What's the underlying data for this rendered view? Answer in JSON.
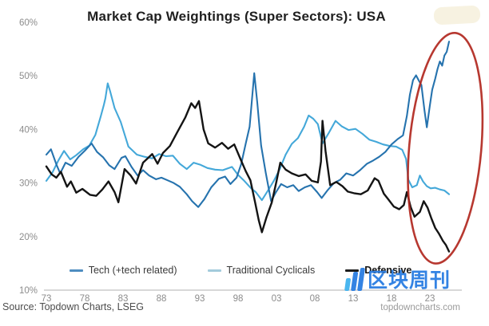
{
  "title": "Market Cap Weightings (Super Sectors): USA",
  "source": "Source: Topdown Charts, LSEG",
  "website": "topdowncharts.com",
  "watermark": {
    "text": "区块周刊",
    "color": "#2a7de2",
    "bar_colors": [
      "#41b3ef",
      "#2a7de2",
      "#2a7de2"
    ]
  },
  "colors": {
    "tech_line": "#2673ae",
    "cyclicals_line": "#44a8d9",
    "defensive_line": "#141414",
    "ellipse": "#b1271e",
    "axis_text": "#8c8c8c",
    "baseline": "#cccccc",
    "legend_swatches": [
      "#4e8dc0",
      "#a3cbdc",
      "#1d1d1d"
    ]
  },
  "chart_data": {
    "type": "line",
    "title": "Market Cap Weightings (Super Sectors): USA",
    "xlabel": "",
    "ylabel": "",
    "grid": false,
    "legend_position": "bottom",
    "ylim": [
      10,
      60
    ],
    "xlim": [
      1971.8,
      2026.5
    ],
    "y_ticks": {
      "labels": [
        "60%",
        "50%",
        "40%",
        "30%",
        "20%",
        "10%"
      ],
      "values": [
        60,
        50,
        40,
        30,
        20,
        10
      ]
    },
    "x_ticks": {
      "labels": [
        "73",
        "78",
        "83",
        "88",
        "93",
        "98",
        "03",
        "08",
        "13",
        "18",
        "23"
      ],
      "years": [
        1973,
        1978,
        1983,
        1988,
        1993,
        1998,
        2003,
        2008,
        2013,
        2018,
        2023
      ]
    },
    "highlight_ellipse": {
      "note": "red ellipse circling post-2020 divergence: Tech surging, Defensive collapsing",
      "center_year": 2025.0,
      "center_value": 36.5,
      "radius_years": 4.7,
      "radius_value": 21.6,
      "tilt_deg": 5
    },
    "series": [
      {
        "name": "Tech (+tech related)",
        "key": "tech",
        "color_key": "tech_line",
        "bold_legend": false,
        "points": [
          [
            1973.0,
            35.3
          ],
          [
            1973.6,
            36.3
          ],
          [
            1974.3,
            33.5
          ],
          [
            1974.8,
            31.8
          ],
          [
            1975.5,
            33.8
          ],
          [
            1976.3,
            33.2
          ],
          [
            1977.2,
            34.9
          ],
          [
            1978.0,
            36.0
          ],
          [
            1978.9,
            37.4
          ],
          [
            1979.6,
            35.8
          ],
          [
            1980.4,
            34.8
          ],
          [
            1981.2,
            33.3
          ],
          [
            1981.9,
            32.6
          ],
          [
            1982.8,
            34.7
          ],
          [
            1983.3,
            35.0
          ],
          [
            1984.1,
            33.0
          ],
          [
            1984.9,
            31.4
          ],
          [
            1985.6,
            32.4
          ],
          [
            1986.4,
            31.4
          ],
          [
            1987.3,
            30.7
          ],
          [
            1988.0,
            31.0
          ],
          [
            1988.8,
            30.5
          ],
          [
            1989.6,
            30.0
          ],
          [
            1990.4,
            29.3
          ],
          [
            1991.3,
            27.9
          ],
          [
            1992.0,
            26.6
          ],
          [
            1992.8,
            25.5
          ],
          [
            1993.6,
            27.0
          ],
          [
            1994.5,
            29.2
          ],
          [
            1995.5,
            30.8
          ],
          [
            1996.3,
            31.2
          ],
          [
            1997.0,
            29.8
          ],
          [
            1997.8,
            31.0
          ],
          [
            1998.4,
            33.5
          ],
          [
            1999.0,
            37.4
          ],
          [
            1999.5,
            40.5
          ],
          [
            1999.8,
            45.5
          ],
          [
            2000.1,
            50.5
          ],
          [
            2000.5,
            45.0
          ],
          [
            2001.0,
            37.0
          ],
          [
            2001.6,
            31.9
          ],
          [
            2002.3,
            26.6
          ],
          [
            2002.9,
            28.2
          ],
          [
            2003.6,
            29.8
          ],
          [
            2004.4,
            29.2
          ],
          [
            2005.2,
            29.6
          ],
          [
            2005.9,
            28.5
          ],
          [
            2006.7,
            29.2
          ],
          [
            2007.5,
            29.6
          ],
          [
            2008.3,
            28.3
          ],
          [
            2008.9,
            27.2
          ],
          [
            2009.7,
            28.7
          ],
          [
            2010.5,
            30.0
          ],
          [
            2011.3,
            30.6
          ],
          [
            2012.1,
            31.8
          ],
          [
            2013.0,
            31.4
          ],
          [
            2013.9,
            32.4
          ],
          [
            2014.8,
            33.6
          ],
          [
            2015.6,
            34.2
          ],
          [
            2016.4,
            34.9
          ],
          [
            2017.2,
            35.8
          ],
          [
            2018.0,
            37.2
          ],
          [
            2018.8,
            38.2
          ],
          [
            2019.5,
            38.9
          ],
          [
            2020.0,
            42.5
          ],
          [
            2020.4,
            46.5
          ],
          [
            2020.8,
            49.2
          ],
          [
            2021.2,
            50.1
          ],
          [
            2021.6,
            49.0
          ],
          [
            2021.9,
            48.3
          ],
          [
            2022.3,
            43.5
          ],
          [
            2022.6,
            40.4
          ],
          [
            2023.0,
            44.5
          ],
          [
            2023.3,
            47.4
          ],
          [
            2023.7,
            49.5
          ],
          [
            2024.0,
            51.3
          ],
          [
            2024.3,
            52.7
          ],
          [
            2024.6,
            51.9
          ],
          [
            2024.9,
            53.8
          ],
          [
            2025.2,
            54.5
          ],
          [
            2025.5,
            56.4
          ]
        ]
      },
      {
        "name": "Traditional Cyclicals",
        "key": "traditional-cyclicals",
        "color_key": "cyclicals_line",
        "bold_legend": false,
        "points": [
          [
            1973.0,
            30.4
          ],
          [
            1973.8,
            32.0
          ],
          [
            1974.6,
            34.3
          ],
          [
            1975.3,
            36.0
          ],
          [
            1976.1,
            34.4
          ],
          [
            1976.9,
            35.2
          ],
          [
            1977.8,
            36.3
          ],
          [
            1978.6,
            37.0
          ],
          [
            1979.4,
            39.0
          ],
          [
            1980.1,
            42.5
          ],
          [
            1980.5,
            44.6
          ],
          [
            1980.7,
            45.8
          ],
          [
            1981.0,
            48.6
          ],
          [
            1981.3,
            47.2
          ],
          [
            1981.9,
            44.0
          ],
          [
            1982.7,
            41.4
          ],
          [
            1983.7,
            36.8
          ],
          [
            1984.8,
            35.3
          ],
          [
            1985.8,
            34.9
          ],
          [
            1986.8,
            34.6
          ],
          [
            1987.7,
            35.4
          ],
          [
            1988.6,
            35.0
          ],
          [
            1989.5,
            35.1
          ],
          [
            1990.4,
            33.6
          ],
          [
            1991.3,
            32.6
          ],
          [
            1992.2,
            33.8
          ],
          [
            1993.1,
            33.4
          ],
          [
            1994.0,
            32.8
          ],
          [
            1995.0,
            32.5
          ],
          [
            1996.0,
            32.4
          ],
          [
            1997.2,
            33.0
          ],
          [
            1998.0,
            31.5
          ],
          [
            1998.8,
            30.4
          ],
          [
            1999.7,
            29.0
          ],
          [
            2000.3,
            28.3
          ],
          [
            2001.1,
            26.8
          ],
          [
            2001.9,
            28.6
          ],
          [
            2002.7,
            30.5
          ],
          [
            2003.4,
            32.5
          ],
          [
            2004.2,
            35.3
          ],
          [
            2005.0,
            37.3
          ],
          [
            2005.8,
            38.4
          ],
          [
            2006.6,
            40.5
          ],
          [
            2007.2,
            42.6
          ],
          [
            2007.8,
            42.0
          ],
          [
            2008.4,
            41.0
          ],
          [
            2009.0,
            37.4
          ],
          [
            2009.8,
            39.3
          ],
          [
            2010.7,
            41.6
          ],
          [
            2011.5,
            40.6
          ],
          [
            2012.4,
            39.9
          ],
          [
            2013.3,
            40.1
          ],
          [
            2014.2,
            39.2
          ],
          [
            2015.1,
            38.1
          ],
          [
            2016.0,
            37.7
          ],
          [
            2016.9,
            37.2
          ],
          [
            2017.8,
            36.9
          ],
          [
            2018.6,
            36.8
          ],
          [
            2019.4,
            36.2
          ],
          [
            2019.9,
            34.5
          ],
          [
            2020.2,
            30.6
          ],
          [
            2020.7,
            29.2
          ],
          [
            2021.3,
            29.6
          ],
          [
            2021.7,
            31.4
          ],
          [
            2022.1,
            30.3
          ],
          [
            2022.6,
            29.4
          ],
          [
            2023.1,
            29.0
          ],
          [
            2023.7,
            29.1
          ],
          [
            2024.3,
            28.8
          ],
          [
            2024.9,
            28.6
          ],
          [
            2025.5,
            27.9
          ]
        ]
      },
      {
        "name": "Defensive",
        "key": "defensive",
        "color_key": "defensive_line",
        "bold_legend": true,
        "points": [
          [
            1973.0,
            33.1
          ],
          [
            1973.7,
            31.6
          ],
          [
            1974.3,
            31.0
          ],
          [
            1974.9,
            32.1
          ],
          [
            1975.7,
            29.3
          ],
          [
            1976.2,
            30.3
          ],
          [
            1976.9,
            28.2
          ],
          [
            1977.7,
            28.9
          ],
          [
            1978.7,
            27.8
          ],
          [
            1979.5,
            27.6
          ],
          [
            1980.3,
            28.8
          ],
          [
            1981.1,
            30.3
          ],
          [
            1981.9,
            28.3
          ],
          [
            1982.4,
            26.4
          ],
          [
            1983.2,
            32.6
          ],
          [
            1984.0,
            31.4
          ],
          [
            1984.7,
            29.9
          ],
          [
            1985.6,
            33.8
          ],
          [
            1986.8,
            35.4
          ],
          [
            1987.5,
            33.6
          ],
          [
            1988.2,
            35.6
          ],
          [
            1989.1,
            36.9
          ],
          [
            1990.0,
            39.3
          ],
          [
            1991.1,
            42.2
          ],
          [
            1991.9,
            44.9
          ],
          [
            1992.4,
            44.0
          ],
          [
            1992.9,
            45.3
          ],
          [
            1993.5,
            40.0
          ],
          [
            1994.1,
            37.4
          ],
          [
            1995.0,
            36.6
          ],
          [
            1995.9,
            37.5
          ],
          [
            1996.7,
            36.4
          ],
          [
            1997.5,
            37.2
          ],
          [
            1998.3,
            34.5
          ],
          [
            1999.0,
            32.2
          ],
          [
            1999.6,
            30.5
          ],
          [
            2000.2,
            26.5
          ],
          [
            2000.7,
            23.0
          ],
          [
            2001.1,
            20.8
          ],
          [
            2001.7,
            23.6
          ],
          [
            2002.4,
            26.4
          ],
          [
            2003.0,
            30.3
          ],
          [
            2003.5,
            33.8
          ],
          [
            2004.2,
            32.5
          ],
          [
            2005.0,
            31.8
          ],
          [
            2005.9,
            31.3
          ],
          [
            2006.8,
            31.6
          ],
          [
            2007.6,
            30.4
          ],
          [
            2008.4,
            30.1
          ],
          [
            2008.8,
            34.0
          ],
          [
            2009.0,
            41.6
          ],
          [
            2009.4,
            36.0
          ],
          [
            2010.0,
            29.6
          ],
          [
            2010.8,
            30.2
          ],
          [
            2011.6,
            29.4
          ],
          [
            2012.3,
            28.4
          ],
          [
            2013.1,
            28.1
          ],
          [
            2014.0,
            27.9
          ],
          [
            2014.9,
            28.6
          ],
          [
            2015.8,
            30.9
          ],
          [
            2016.3,
            30.4
          ],
          [
            2017.0,
            28.0
          ],
          [
            2017.6,
            26.9
          ],
          [
            2018.3,
            25.6
          ],
          [
            2019.0,
            25.1
          ],
          [
            2019.6,
            25.9
          ],
          [
            2020.0,
            28.3
          ],
          [
            2020.5,
            25.5
          ],
          [
            2021.0,
            23.7
          ],
          [
            2021.7,
            24.6
          ],
          [
            2022.2,
            26.6
          ],
          [
            2022.7,
            25.4
          ],
          [
            2023.2,
            23.4
          ],
          [
            2023.7,
            21.6
          ],
          [
            2024.2,
            20.5
          ],
          [
            2024.7,
            19.2
          ],
          [
            2025.1,
            18.4
          ],
          [
            2025.5,
            17.2
          ]
        ]
      }
    ]
  }
}
